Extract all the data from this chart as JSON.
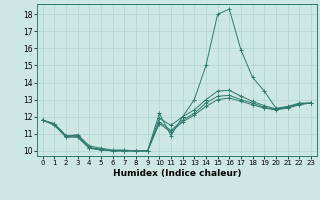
{
  "title": "",
  "xlabel": "Humidex (Indice chaleur)",
  "bg_color": "#cde8e4",
  "grid_color": "#b0d5ce",
  "line_color": "#2d7a6e",
  "xlim": [
    -0.5,
    23.5
  ],
  "ylim": [
    9.7,
    18.6
  ],
  "yticks": [
    10,
    11,
    12,
    13,
    14,
    15,
    16,
    17,
    18
  ],
  "xticks": [
    0,
    1,
    2,
    3,
    4,
    5,
    6,
    7,
    8,
    9,
    10,
    11,
    12,
    13,
    14,
    15,
    16,
    17,
    18,
    19,
    20,
    21,
    22,
    23
  ],
  "series": [
    {
      "x": [
        0,
        1,
        2,
        3,
        4,
        5,
        6,
        7,
        8,
        9,
        10,
        11,
        12,
        13,
        14,
        15,
        16,
        17,
        18,
        19,
        20,
        21,
        22,
        23
      ],
      "y": [
        11.8,
        11.6,
        10.9,
        10.9,
        10.2,
        10.1,
        10.0,
        10.0,
        10.0,
        10.0,
        12.2,
        10.9,
        12.0,
        13.0,
        15.0,
        18.0,
        18.3,
        15.9,
        14.3,
        13.5,
        12.5,
        12.6,
        12.8,
        12.8
      ]
    },
    {
      "x": [
        0,
        1,
        2,
        3,
        4,
        5,
        6,
        7,
        8,
        9,
        10,
        11,
        12,
        13,
        14,
        15,
        16,
        17,
        18,
        19,
        20,
        21,
        22,
        23
      ],
      "y": [
        11.8,
        11.5,
        10.8,
        10.8,
        10.15,
        10.05,
        10.0,
        10.0,
        10.0,
        10.0,
        11.6,
        11.1,
        11.7,
        12.1,
        12.6,
        13.0,
        13.1,
        12.9,
        12.7,
        12.5,
        12.4,
        12.5,
        12.7,
        12.8
      ]
    },
    {
      "x": [
        0,
        1,
        2,
        3,
        4,
        5,
        6,
        7,
        8,
        9,
        10,
        11,
        12,
        13,
        14,
        15,
        16,
        17,
        18,
        19,
        20,
        21,
        22,
        23
      ],
      "y": [
        11.8,
        11.55,
        10.85,
        10.85,
        10.17,
        10.07,
        10.0,
        10.0,
        10.0,
        10.0,
        11.7,
        11.2,
        11.8,
        12.2,
        12.8,
        13.2,
        13.25,
        13.0,
        12.8,
        12.55,
        12.45,
        12.55,
        12.75,
        12.8
      ]
    },
    {
      "x": [
        0,
        1,
        2,
        3,
        4,
        5,
        6,
        7,
        8,
        9,
        10,
        11,
        12,
        13,
        14,
        15,
        16,
        17,
        18,
        19,
        20,
        21,
        22,
        23
      ],
      "y": [
        11.8,
        11.57,
        10.87,
        10.95,
        10.3,
        10.15,
        10.05,
        10.05,
        10.0,
        10.0,
        11.9,
        11.5,
        12.0,
        12.4,
        13.0,
        13.5,
        13.55,
        13.2,
        12.9,
        12.65,
        12.45,
        12.55,
        12.75,
        12.8
      ]
    }
  ]
}
